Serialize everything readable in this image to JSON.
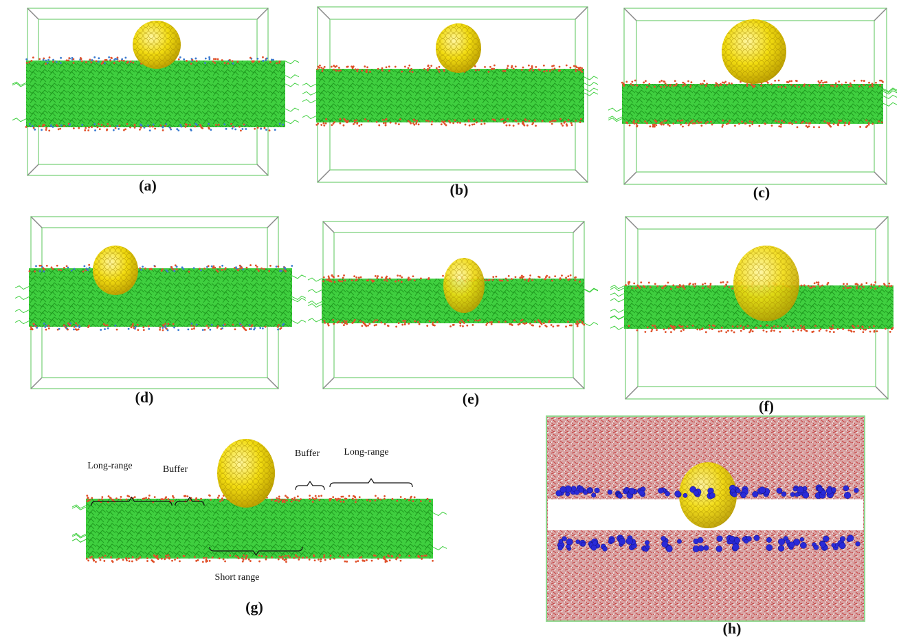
{
  "panels": [
    {
      "label": "(a)"
    },
    {
      "label": "(b)"
    },
    {
      "label": "(c)"
    },
    {
      "label": "(d)"
    },
    {
      "label": "(e)"
    },
    {
      "label": "(f)"
    },
    {
      "label": "(g)"
    },
    {
      "label": "(h)"
    }
  ],
  "annotations": [
    "Long-range",
    "Buffer",
    "Buffer",
    "Long-range",
    "Short range"
  ]
}
